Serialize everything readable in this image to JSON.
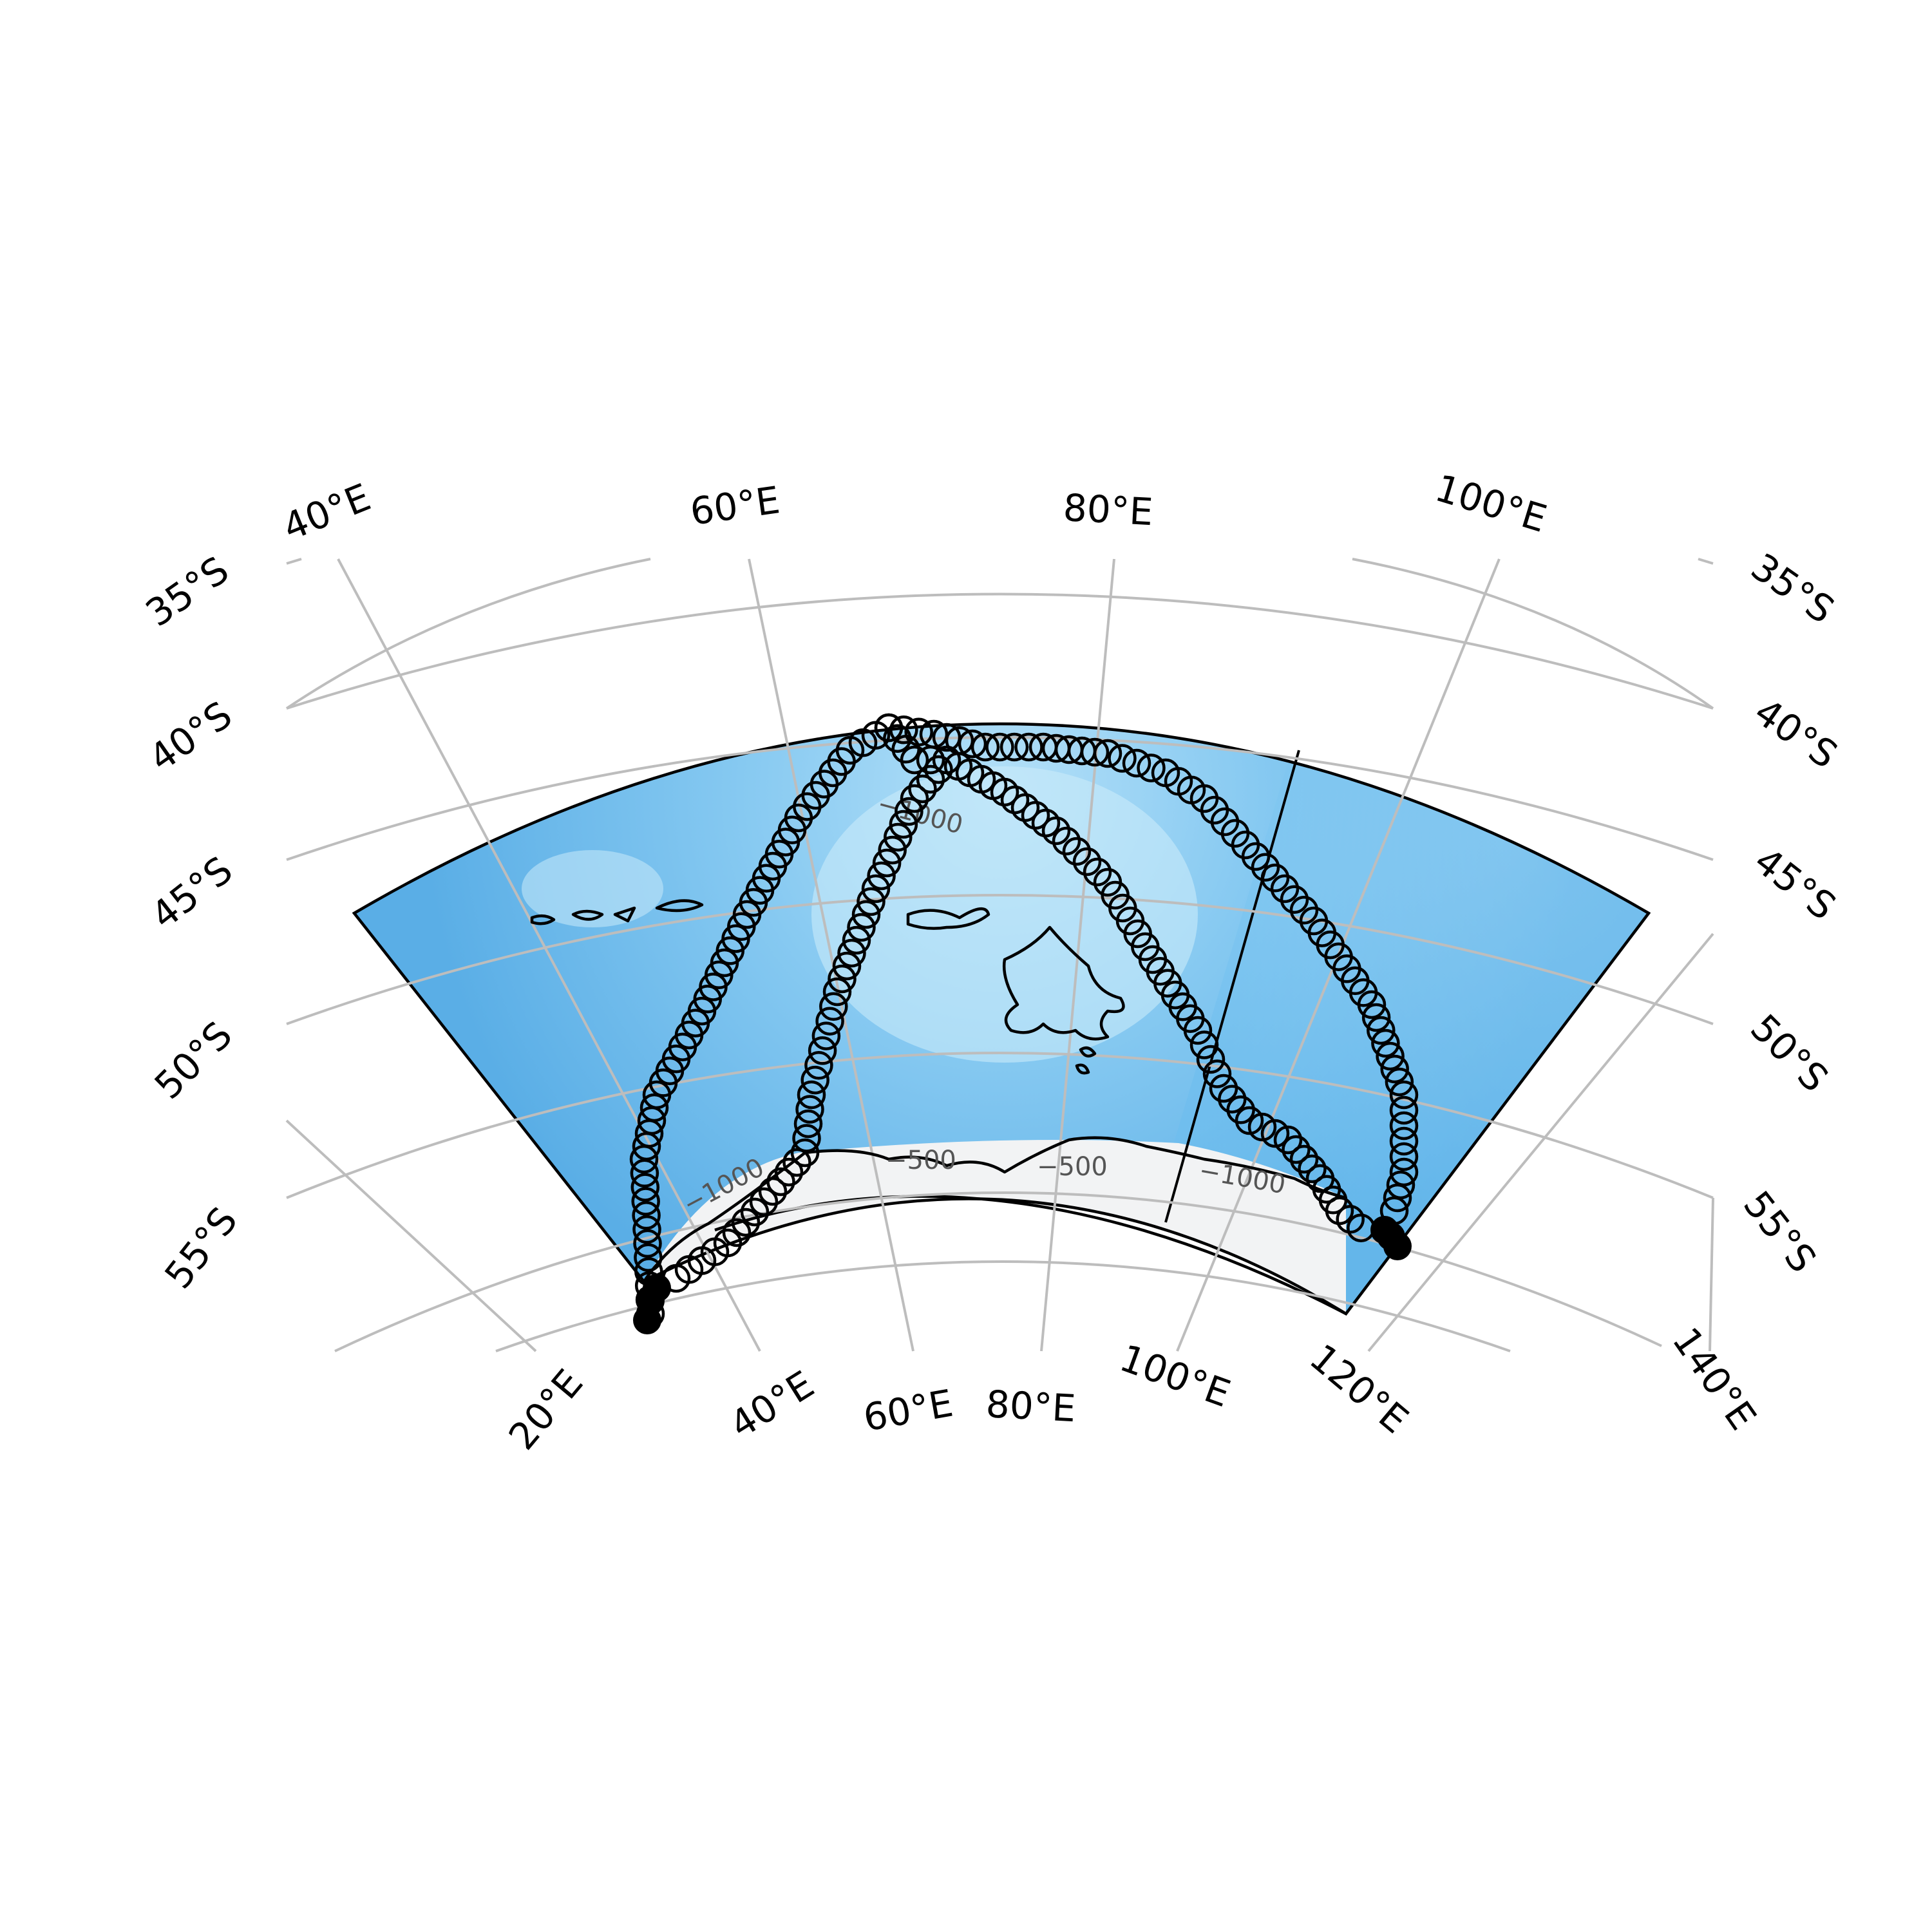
{
  "map": {
    "projection": "polar stereographic (south), sector 20°E–120°E, 35°S–58°S",
    "grid": true,
    "colors": {
      "ocean_deep": "#5fb4e8",
      "ocean_shallow": "#a8dcf6",
      "ice": "#f2f2f2",
      "graticule": "#bdbdbd",
      "coastline": "#000000",
      "track": "#000000"
    },
    "meridian_labels_top": [
      "40°E",
      "60°E",
      "80°E",
      "100°E"
    ],
    "meridian_labels_bottom": [
      "20°E",
      "40°E",
      "60°E",
      "80°E",
      "100°E",
      "120°E",
      "140°E"
    ],
    "parallel_labels_left": [
      "35°S",
      "40°S",
      "45°S",
      "50°S",
      "55°S"
    ],
    "parallel_labels_right": [
      "35°S",
      "40°S",
      "45°S",
      "50°S",
      "55°S"
    ],
    "contour_labels": [
      "−1000",
      "−1000",
      "−500",
      "−500",
      "−1000"
    ]
  }
}
